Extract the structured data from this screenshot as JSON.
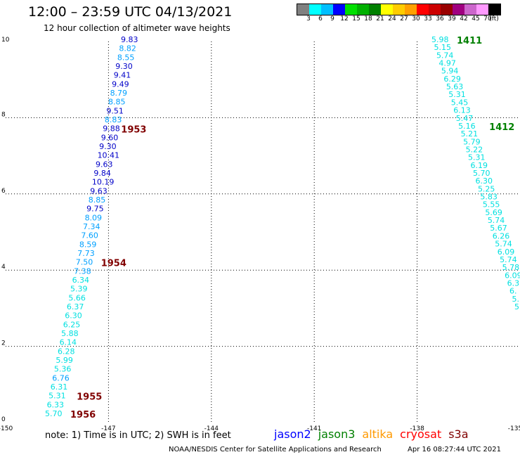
{
  "title": "12:00 – 23:59 UTC 04/13/2021",
  "subtitle": "12 hour collection of altimeter wave heights",
  "legend": {
    "labels": [
      "3",
      "6",
      "9",
      "12",
      "15",
      "18",
      "21",
      "24",
      "27",
      "30",
      "33",
      "36",
      "39",
      "42",
      "45",
      "70",
      "(ft)"
    ],
    "colors": [
      "#808080",
      "#00ffff",
      "#00bfff",
      "#0000ff",
      "#00e000",
      "#00b000",
      "#008000",
      "#ffff00",
      "#ffcc00",
      "#ffa000",
      "#ff0000",
      "#cc0000",
      "#990000",
      "#a00080",
      "#cc66cc",
      "#ff99ff",
      "#000000"
    ]
  },
  "axes": {
    "x_ticks": [
      "-150",
      "-147",
      "-144",
      "-141",
      "-138",
      "-135"
    ],
    "y_ticks": [
      "0",
      "2",
      "4",
      "6",
      "8",
      "10"
    ]
  },
  "colors": {
    "low": "#00e0e0",
    "mid": "#00a0ff",
    "high": "#0000c8",
    "time": "#800000",
    "time_green": "#008000"
  },
  "tracks": [
    {
      "name": "track-1",
      "values": [
        "5.70",
        "6.33",
        "5.31",
        "6.31",
        "6.76",
        "5.36",
        "5.99",
        "6.28",
        "6.14",
        "5.88",
        "6.25",
        "6.30",
        "6.37",
        "5.66",
        "5.39",
        "6.34",
        "7.38",
        "7.50",
        "7.73",
        "8.59",
        "7.60",
        "7.34",
        "8.09",
        "9.75",
        "8.85",
        "9.63",
        "10.19",
        "9.84",
        "9.63",
        "10.41",
        "9.30",
        "9.60",
        "9.88",
        "8.83",
        "9.51",
        "8.85",
        "8.79",
        "9.49",
        "9.41",
        "9.30",
        "8.55",
        "8.82",
        "9.83"
      ],
      "times": [
        {
          "label": "1956",
          "index": 0
        },
        {
          "label": "1955",
          "index": 2
        },
        {
          "label": "1954",
          "index": 17
        },
        {
          "label": "1953",
          "index": 32
        }
      ]
    },
    {
      "name": "track-2",
      "values": [
        "5.98",
        "5.15",
        "5.74",
        "4.97",
        "5.94",
        "6.29",
        "5.63",
        "5.31",
        "5.45",
        "6.13",
        "5.47",
        "5.16",
        "5.21",
        "5.79",
        "5.22",
        "5.31",
        "6.19",
        "5.70",
        "6.30",
        "5.25",
        "5.83",
        "5.55",
        "5.69",
        "5.74",
        "5.67",
        "6.26",
        "5.74",
        "6.09",
        "5.74",
        "5.78",
        "6.09",
        "6.3",
        "6.",
        "5.",
        "5"
      ],
      "times": [
        {
          "label": "1411",
          "index": 0
        },
        {
          "label": "1412",
          "index": 11
        }
      ]
    }
  ],
  "note": "note: 1) Time is in UTC; 2) SWH is in feet",
  "satellites": [
    {
      "name": "jason2",
      "color": "#0000ff"
    },
    {
      "name": "jason3",
      "color": "#008000"
    },
    {
      "name": "altika",
      "color": "#ff9900"
    },
    {
      "name": "cryosat",
      "color": "#ff0000"
    },
    {
      "name": "s3a",
      "color": "#800000"
    }
  ],
  "footer_left": "NOAA/NESDIS Center for Satellite Applications and Research",
  "footer_right": "Apr 16 08:27:44 UTC 2021"
}
